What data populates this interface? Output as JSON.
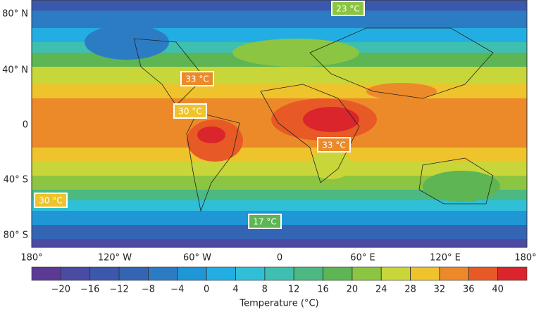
{
  "map": {
    "y_labels": [
      "80° N",
      "40° N",
      "0",
      "40° S",
      "80° S"
    ],
    "x_labels": [
      "180°",
      "120° W",
      "60° W",
      "0",
      "60° E",
      "120° E",
      "180°"
    ],
    "annotations": [
      {
        "text": "23 °C",
        "color": "#8cc541"
      },
      {
        "text": "33 °C",
        "color": "#ec8a2a"
      },
      {
        "text": "30 °C",
        "color": "#eec32c"
      },
      {
        "text": "33 °C",
        "color": "#ec8a2a"
      },
      {
        "text": "30 °C",
        "color": "#eec32c"
      },
      {
        "text": "17 °C",
        "color": "#5db553"
      }
    ],
    "colorbar": {
      "label": "Temperature (°C)",
      "lim": [
        -24,
        44
      ],
      "ticks": [
        {
          "value": -20,
          "label": "−20"
        },
        {
          "value": -16,
          "label": "−16"
        },
        {
          "value": -12,
          "label": "−12"
        },
        {
          "value": -8,
          "label": "−8"
        },
        {
          "value": -4,
          "label": "−4"
        },
        0,
        4,
        8,
        12,
        16,
        20,
        24,
        28,
        32,
        36,
        40
      ],
      "colors": [
        "#5b3a96",
        "#4a4ba3",
        "#3c58ad",
        "#3465b5",
        "#2c7cc4",
        "#1f96d6",
        "#23aee3",
        "#2fbfd7",
        "#3fbfb0",
        "#4cb882",
        "#5db553",
        "#8cc541",
        "#c8d63a",
        "#eec32c",
        "#ec8a2a",
        "#e85a25",
        "#d9252b"
      ]
    }
  }
}
